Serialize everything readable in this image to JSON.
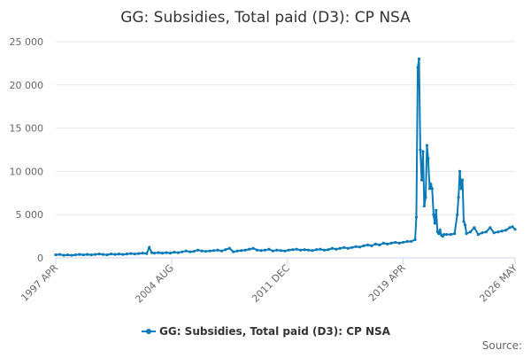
{
  "chart_data": {
    "type": "line",
    "title": "GG: Subsidies, Total paid (D3): CP NSA",
    "source": "Source:",
    "legend_position": "bottom",
    "grid": true,
    "x": [
      1997.25,
      1997.5,
      1997.75,
      1998,
      1998.25,
      1998.5,
      1998.75,
      1999,
      1999.25,
      1999.5,
      1999.75,
      2000,
      2000.25,
      2000.5,
      2000.75,
      2001,
      2001.25,
      2001.5,
      2001.75,
      2002,
      2002.25,
      2002.5,
      2002.75,
      2003,
      2003.17,
      2003.33,
      2003.5,
      2003.75,
      2004,
      2004.25,
      2004.5,
      2004.75,
      2005,
      2005.25,
      2005.5,
      2005.75,
      2006,
      2006.25,
      2006.5,
      2006.75,
      2007,
      2007.25,
      2007.5,
      2007.75,
      2008,
      2008.25,
      2008.5,
      2008.75,
      2009,
      2009.25,
      2009.5,
      2009.75,
      2010,
      2010.25,
      2010.5,
      2010.75,
      2011,
      2011.25,
      2011.5,
      2011.75,
      2012,
      2012.25,
      2012.5,
      2012.75,
      2013,
      2013.25,
      2013.5,
      2013.75,
      2014,
      2014.25,
      2014.5,
      2014.75,
      2015,
      2015.25,
      2015.5,
      2015.75,
      2016,
      2016.25,
      2016.5,
      2016.75,
      2017,
      2017.25,
      2017.5,
      2017.75,
      2018,
      2018.25,
      2018.5,
      2018.75,
      2019,
      2019.25,
      2019.5,
      2019.75,
      2020,
      2020.08,
      2020.17,
      2020.25,
      2020.33,
      2020.42,
      2020.5,
      2020.58,
      2020.67,
      2020.75,
      2020.83,
      2020.92,
      2021,
      2021.08,
      2021.17,
      2021.25,
      2021.33,
      2021.42,
      2021.5,
      2021.58,
      2021.67,
      2021.75,
      2021.83,
      2022,
      2022.25,
      2022.5,
      2022.67,
      2022.75,
      2022.83,
      2022.92,
      2023,
      2023.08,
      2023.17,
      2023.25,
      2023.5,
      2023.75,
      2024,
      2024.25,
      2024.5,
      2024.75,
      2025,
      2025.25,
      2025.5,
      2025.75,
      2026,
      2026.17,
      2026.33
    ],
    "series": [
      {
        "name": "GG: Subsidies, Total paid (D3): CP NSA",
        "color": "#0a7ab8",
        "values": [
          350,
          400,
          300,
          350,
          300,
          350,
          400,
          350,
          400,
          350,
          400,
          450,
          400,
          350,
          450,
          400,
          450,
          400,
          450,
          500,
          450,
          500,
          550,
          500,
          1200,
          600,
          550,
          600,
          550,
          600,
          550,
          650,
          600,
          700,
          800,
          700,
          750,
          900,
          800,
          750,
          800,
          850,
          900,
          800,
          950,
          1100,
          700,
          800,
          850,
          900,
          1000,
          1100,
          900,
          850,
          900,
          1000,
          800,
          900,
          850,
          800,
          900,
          950,
          1000,
          900,
          950,
          900,
          850,
          950,
          1000,
          900,
          950,
          1100,
          1000,
          1100,
          1200,
          1100,
          1200,
          1300,
          1250,
          1400,
          1500,
          1400,
          1600,
          1500,
          1700,
          1600,
          1700,
          1800,
          1700,
          1800,
          1900,
          1900,
          2100,
          4700,
          22000,
          23000,
          12500,
          9000,
          12300,
          6000,
          7000,
          13000,
          11500,
          8000,
          8500,
          8000,
          5000,
          4000,
          5500,
          3000,
          2800,
          3200,
          2600,
          2500,
          2700,
          2700,
          2700,
          2800,
          5000,
          7000,
          10000,
          8000,
          9000,
          4200,
          3800,
          2800,
          3000,
          3500,
          2700,
          2900,
          3000,
          3500,
          2900,
          3000,
          3100,
          3200,
          3500,
          3600,
          3300
        ]
      }
    ],
    "xlim": [
      1997.25,
      2026.33
    ],
    "xticks": [
      {
        "value": 1997.25,
        "label": "1997 APR"
      },
      {
        "value": 2004.58,
        "label": "2004 AUG"
      },
      {
        "value": 2011.92,
        "label": "2011 DEC"
      },
      {
        "value": 2019.25,
        "label": "2019 APR"
      },
      {
        "value": 2026.33,
        "label": "2026 MAY"
      }
    ],
    "ylim": [
      0,
      25000
    ],
    "yticks": [
      0,
      {
        "value": 5000,
        "label": "5 000"
      },
      {
        "value": 10000,
        "label": "10 000"
      },
      {
        "value": 15000,
        "label": "15 000"
      },
      {
        "value": 20000,
        "label": "20 000"
      },
      {
        "value": 25000,
        "label": "25 000"
      }
    ]
  }
}
